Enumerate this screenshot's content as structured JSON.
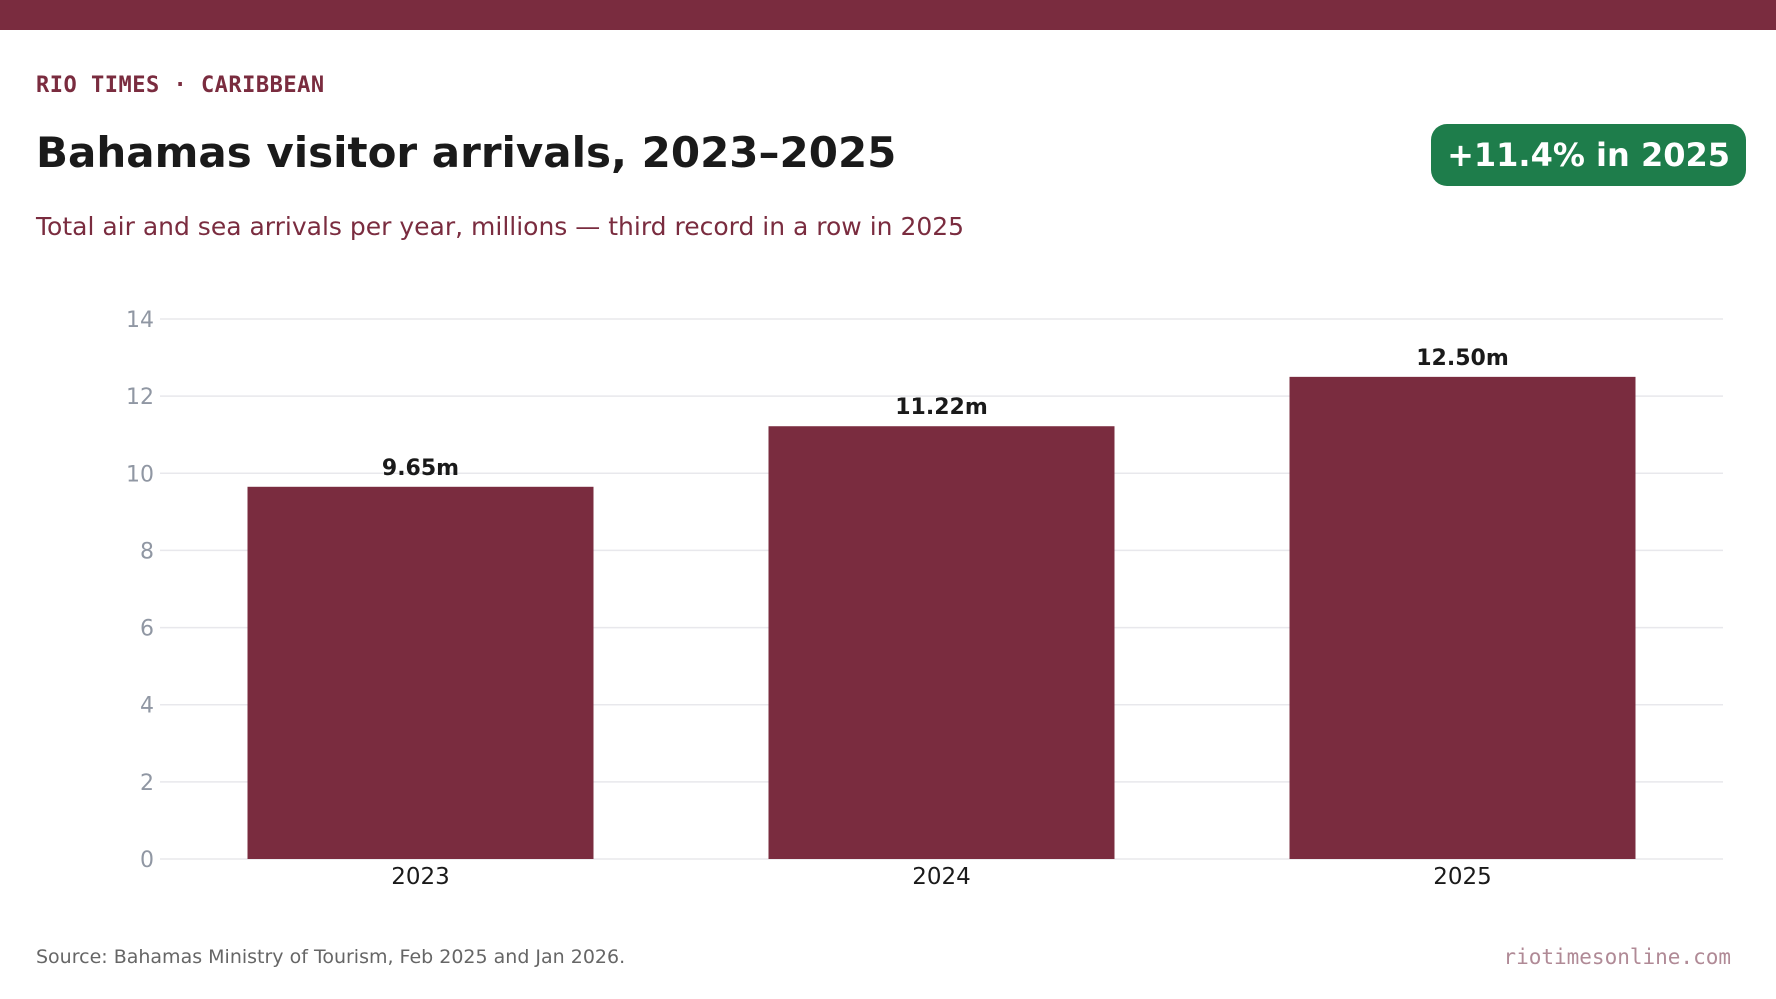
{
  "header": {
    "kicker": "RIO TIMES · CARIBBEAN",
    "title": "Bahamas visitor arrivals, 2023–2025",
    "subtitle": "Total air and sea arrivals per year, millions — third record in a row in 2025",
    "badge": "+11.4% in 2025"
  },
  "footer": {
    "source": "Source: Bahamas Ministry of Tourism, Feb 2025 and Jan 2026.",
    "site": "riotimesonline.com"
  },
  "colors": {
    "brand": "#7a2c3f",
    "bar": "#7a2c3f",
    "badge": "#1e7d4b",
    "gridline": "#e8e8ec",
    "tick_label": "#9097a3",
    "category_label": "#1a1a1a",
    "value_label": "#1a1a1a"
  },
  "chart_data": {
    "type": "bar",
    "categories": [
      "2023",
      "2024",
      "2025"
    ],
    "values": [
      9.65,
      11.22,
      12.5
    ],
    "value_labels": [
      "9.65m",
      "11.22m",
      "12.50m"
    ],
    "yticks": [
      0,
      2,
      4,
      6,
      8,
      10,
      12,
      14
    ],
    "ylim": [
      0,
      14
    ],
    "grid": true,
    "legend": "none"
  }
}
